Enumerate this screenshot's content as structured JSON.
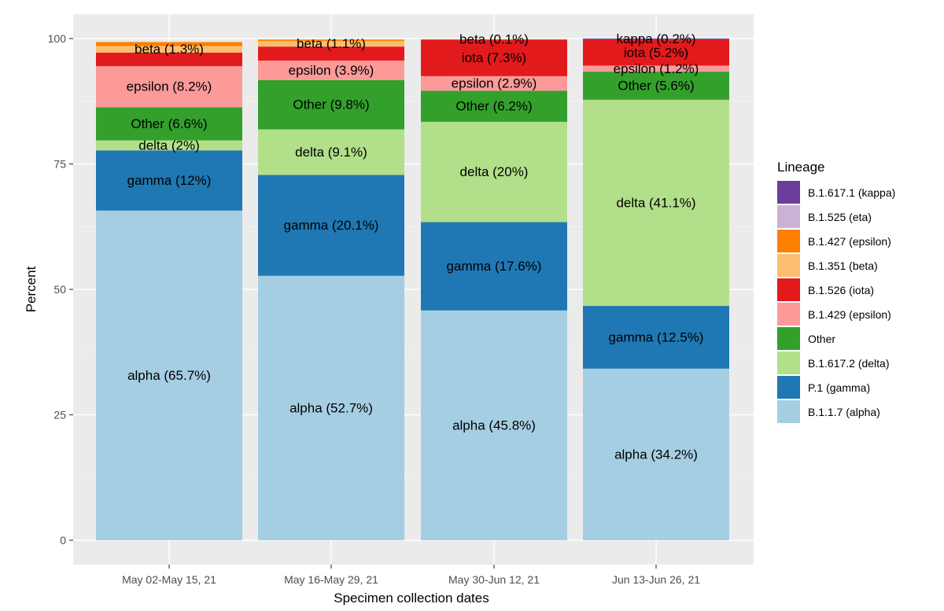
{
  "chart_data": {
    "type": "stacked-bar",
    "title": "",
    "xlabel": "Specimen collection dates",
    "ylabel": "Percent",
    "ylim": [
      0,
      100
    ],
    "yticks": [
      0,
      25,
      50,
      75,
      100
    ],
    "grid": true,
    "categories": [
      "May 02-May 15, 21",
      "May 16-May 29, 21",
      "May 30-Jun 12, 21",
      "Jun 13-Jun 26, 21"
    ],
    "series": [
      {
        "name": "B.1.1.7 (alpha)",
        "short": "alpha",
        "color": "#a6cee3",
        "values": [
          65.7,
          52.7,
          45.8,
          34.2
        ]
      },
      {
        "name": "P.1 (gamma)",
        "short": "gamma",
        "color": "#1f78b4",
        "values": [
          12,
          20.1,
          17.6,
          12.5
        ]
      },
      {
        "name": "B.1.617.2 (delta)",
        "short": "delta",
        "color": "#b2df8a",
        "values": [
          2,
          9.1,
          20,
          41.1
        ]
      },
      {
        "name": "Other",
        "short": "Other",
        "color": "#33a02c",
        "values": [
          6.6,
          9.8,
          6.2,
          5.6
        ]
      },
      {
        "name": "B.1.429 (epsilon)",
        "short": "epsilon",
        "color": "#fb9a99",
        "values": [
          8.2,
          3.9,
          2.9,
          1.2
        ]
      },
      {
        "name": "B.1.526 (iota)",
        "short": "iota",
        "color": "#e31a1c",
        "values": [
          2.7,
          2.8,
          7.3,
          5.2
        ]
      },
      {
        "name": "B.1.351 (beta)",
        "short": "beta",
        "color": "#fdbf6f",
        "values": [
          1.3,
          1.1,
          0.1,
          0
        ]
      },
      {
        "name": "B.1.427 (epsilon)",
        "short": "epsilon",
        "color": "#ff7f00",
        "values": [
          0.8,
          0.3,
          0,
          0
        ]
      },
      {
        "name": "B.1.525 (eta)",
        "short": "eta",
        "color": "#cab2d6",
        "values": [
          0,
          0,
          0,
          0
        ]
      },
      {
        "name": "B.1.617.1 (kappa)",
        "short": "kappa",
        "color": "#6a3d9a",
        "values": [
          0,
          0,
          0,
          0.2
        ]
      }
    ],
    "bar_labels": [
      [
        "alpha (65.7%)",
        "gamma (12%)",
        "delta (2%)",
        "Other (6.6%)",
        "epsilon (8.2%)",
        "",
        "beta (1.3%)",
        "",
        "",
        ""
      ],
      [
        "alpha (52.7%)",
        "gamma (20.1%)",
        "delta (9.1%)",
        "Other (9.8%)",
        "epsilon (3.9%)",
        "",
        "beta (1.1%)",
        "",
        "",
        ""
      ],
      [
        "alpha (45.8%)",
        "gamma (17.6%)",
        "delta (20%)",
        "Other (6.2%)",
        "epsilon (2.9%)",
        "iota (7.3%)",
        "beta (0.1%)",
        "",
        "",
        ""
      ],
      [
        "alpha (34.2%)",
        "gamma (12.5%)",
        "delta (41.1%)",
        "Other (5.6%)",
        "epsilon (1.2%)",
        "iota (5.2%)",
        "",
        "",
        "",
        "kappa (0.2%)"
      ]
    ],
    "legend": {
      "title": "Lineage",
      "position": "right",
      "entries": [
        {
          "label": "B.1.617.1 (kappa)",
          "color": "#6a3d9a"
        },
        {
          "label": "B.1.525 (eta)",
          "color": "#cab2d6"
        },
        {
          "label": "B.1.427 (epsilon)",
          "color": "#ff7f00"
        },
        {
          "label": "B.1.351 (beta)",
          "color": "#fdbf6f"
        },
        {
          "label": "B.1.526 (iota)",
          "color": "#e31a1c"
        },
        {
          "label": "B.1.429 (epsilon)",
          "color": "#fb9a99"
        },
        {
          "label": "Other",
          "color": "#33a02c"
        },
        {
          "label": "B.1.617.2 (delta)",
          "color": "#b2df8a"
        },
        {
          "label": "P.1 (gamma)",
          "color": "#1f78b4"
        },
        {
          "label": "B.1.1.7 (alpha)",
          "color": "#a6cee3"
        }
      ]
    }
  }
}
